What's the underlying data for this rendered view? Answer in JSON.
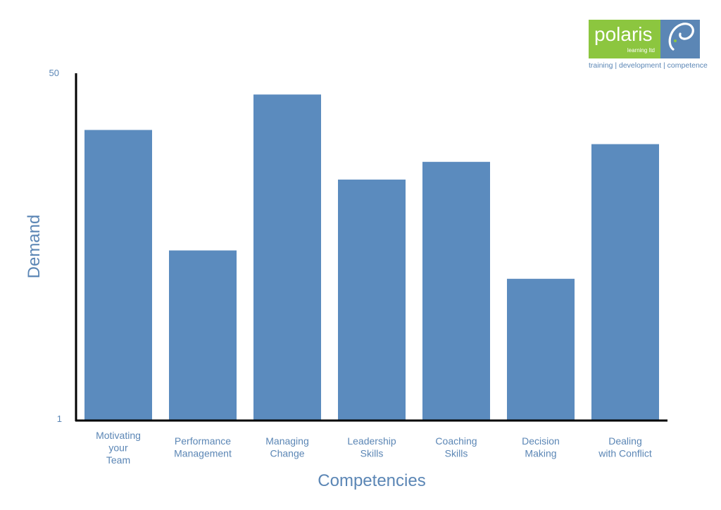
{
  "logo": {
    "name": "polaris",
    "sub": "learning ltd",
    "tagline": "training | development | competence",
    "green": "#8cc63f",
    "blue": "#5b86b5"
  },
  "chart_data": {
    "type": "bar",
    "categories": [
      [
        "Motivating",
        "your",
        "Team"
      ],
      [
        "Performance",
        "Management"
      ],
      [
        "Managing",
        "Change"
      ],
      [
        "Leadership",
        "Skills"
      ],
      [
        "Coaching",
        "Skills"
      ],
      [
        "Decision",
        "Making"
      ],
      [
        "Dealing",
        "with Conflict"
      ]
    ],
    "values": [
      42,
      25,
      47,
      35,
      37.5,
      21,
      40
    ],
    "xlabel": "Competencies",
    "ylabel": "Demand",
    "ylim": [
      1,
      50
    ],
    "yticks": [
      "1",
      "50"
    ],
    "bar_color": "#5b8bbe",
    "text_color": "#5b86b5",
    "grid": false,
    "legend": "none"
  }
}
